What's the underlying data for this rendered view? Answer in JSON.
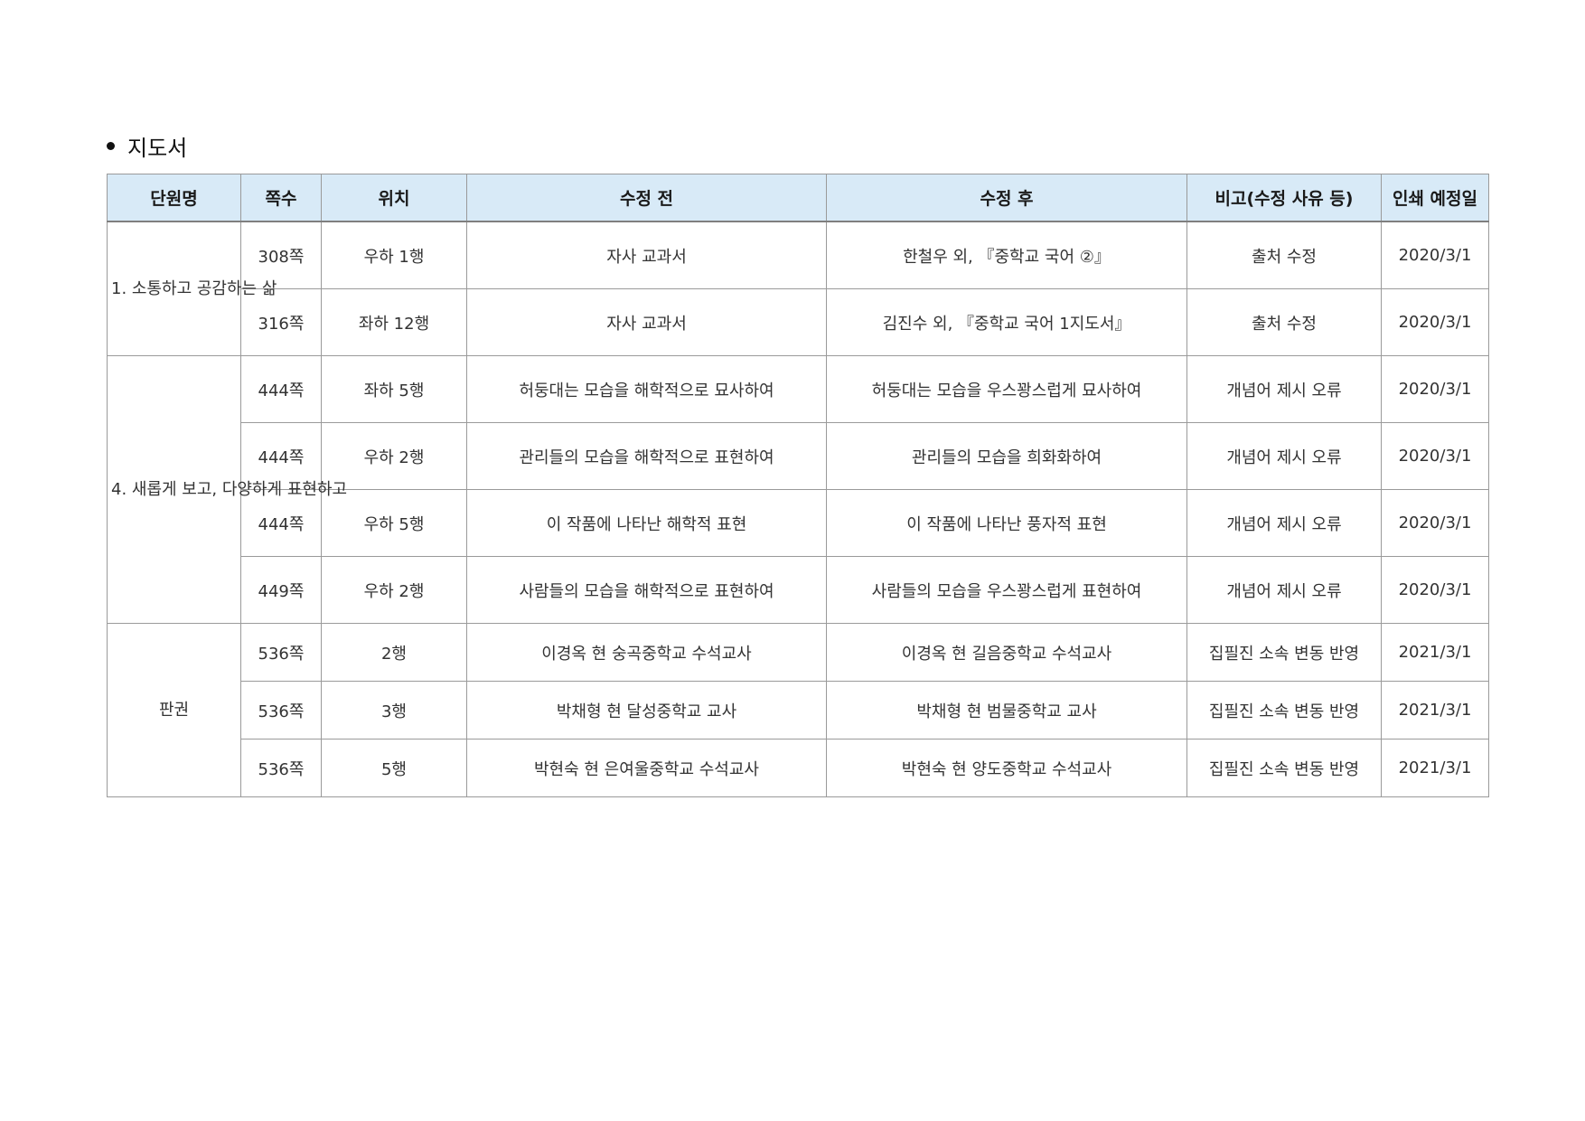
{
  "section": {
    "title": "지도서"
  },
  "table": {
    "headers": {
      "unit": "단원명",
      "page": "쪽수",
      "position": "위치",
      "before": "수정 전",
      "after": "수정 후",
      "note": "비고(수정 사유 등)",
      "print_date": "인쇄 예정일"
    },
    "groups": [
      {
        "unit": "1. 소통하고 공감하는 삶",
        "rows": [
          {
            "page": "308쪽",
            "position": "우하 1행",
            "before": "자사 교과서",
            "after": "한철우 외, 『중학교 국어 ②』",
            "note": "출처 수정",
            "print_date": "2020/3/1"
          },
          {
            "page": "316쪽",
            "position": "좌하 12행",
            "before": "자사 교과서",
            "after": "김진수 외, 『중학교 국어 1지도서』",
            "note": "출처 수정",
            "print_date": "2020/3/1"
          }
        ]
      },
      {
        "unit": "4. 새롭게 보고, 다양하게 표현하고",
        "rows": [
          {
            "page": "444쪽",
            "position": "좌하 5행",
            "before": "허둥대는 모습을 해학적으로 묘사하여",
            "after": "허둥대는 모습을 우스꽝스럽게 묘사하여",
            "note": "개념어 제시 오류",
            "print_date": "2020/3/1"
          },
          {
            "page": "444쪽",
            "position": "우하 2행",
            "before": "관리들의 모습을 해학적으로 표현하여",
            "after": "관리들의 모습을 희화화하여",
            "note": "개념어 제시 오류",
            "print_date": "2020/3/1"
          },
          {
            "page": "444쪽",
            "position": "우하 5행",
            "before": "이 작품에 나타난 해학적 표현",
            "after": "이 작품에 나타난 풍자적 표현",
            "note": "개념어 제시 오류",
            "print_date": "2020/3/1"
          },
          {
            "page": "449쪽",
            "position": "우하 2행",
            "before": "사람들의 모습을 해학적으로 표현하여",
            "after": "사람들의 모습을 우스꽝스럽게 표현하여",
            "note": "개념어 제시 오류",
            "print_date": "2020/3/1"
          }
        ]
      },
      {
        "unit": "판권",
        "rows": [
          {
            "page": "536쪽",
            "position": "2행",
            "before": "이경옥 현 숭곡중학교 수석교사",
            "after": "이경옥 현 길음중학교 수석교사",
            "note": "집필진 소속 변동 반영",
            "print_date": "2021/3/1"
          },
          {
            "page": "536쪽",
            "position": "3행",
            "before": "박채형 현 달성중학교 교사",
            "after": "박채형 현 범물중학교 교사",
            "note": "집필진 소속 변동 반영",
            "print_date": "2021/3/1"
          },
          {
            "page": "536쪽",
            "position": "5행",
            "before": "박현숙 현 은여울중학교 수석교사",
            "after": "박현숙 현 양도중학교 수석교사",
            "note": "집필진 소속 변동 반영",
            "print_date": "2021/3/1"
          }
        ]
      }
    ]
  }
}
